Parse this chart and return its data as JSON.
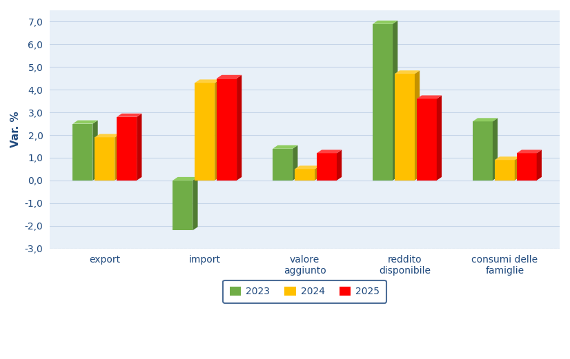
{
  "categories": [
    "export",
    "import",
    "valore\naggiunto",
    "reddito\ndisponibile",
    "consumi delle\nfamiglie"
  ],
  "series": {
    "2023": [
      2.5,
      -2.2,
      1.4,
      6.9,
      2.6
    ],
    "2024": [
      1.9,
      4.3,
      0.5,
      4.7,
      0.9
    ],
    "2025": [
      2.8,
      4.5,
      1.2,
      3.6,
      1.2
    ]
  },
  "colors": {
    "2023": {
      "face": "#70ad47",
      "side": "#507c32",
      "top": "#8fcc60"
    },
    "2024": {
      "face": "#ffc000",
      "side": "#c49200",
      "top": "#ffd040"
    },
    "2025": {
      "face": "#ff0000",
      "side": "#c00000",
      "top": "#ff4040"
    }
  },
  "ylabel": "Var. %",
  "ylim": [
    -3.0,
    7.5
  ],
  "yticks": [
    -3.0,
    -2.0,
    -1.0,
    0.0,
    1.0,
    2.0,
    3.0,
    4.0,
    5.0,
    6.0,
    7.0
  ],
  "ytick_labels": [
    "-3,0",
    "-2,0",
    "-1,0",
    "0,0",
    "1,0",
    "2,0",
    "3,0",
    "4,0",
    "5,0",
    "6,0",
    "7,0"
  ],
  "fig_background": "#ffffff",
  "plot_background": "#e8f0f8",
  "bar_width": 0.2,
  "depth": 0.07,
  "legend_labels": [
    "2023",
    "2024",
    "2025"
  ],
  "grid_color": "#c5d5e8",
  "grid_linewidth": 0.8,
  "axis_label_color": "#1f497d",
  "tick_label_color": "#1f497d"
}
